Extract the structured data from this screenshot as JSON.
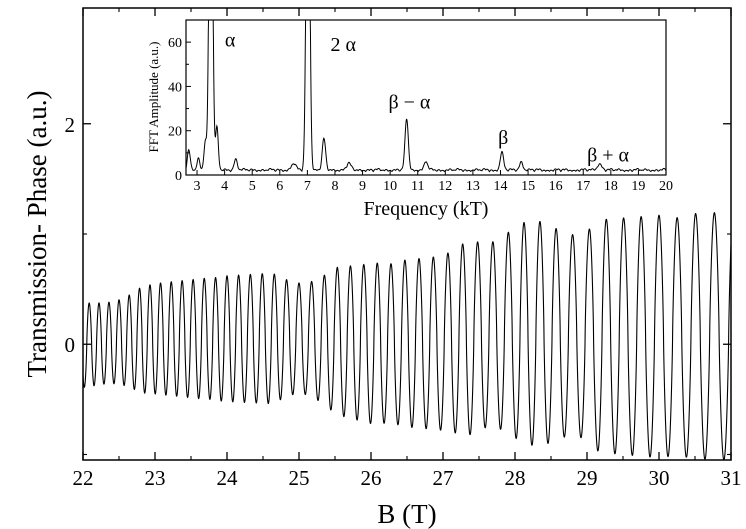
{
  "chart_data": [
    {
      "id": "main",
      "type": "line",
      "xlabel": "B (T)",
      "ylabel": "Transmission- Phase (a.u.)",
      "xlim": [
        22,
        31
      ],
      "ylim": [
        -1.05,
        3.05
      ],
      "x_ticks": [
        22,
        23,
        24,
        25,
        26,
        27,
        28,
        29,
        30,
        31
      ],
      "x_tick_labels": [
        "22",
        "23",
        "24",
        "25",
        "26",
        "27",
        "28",
        "29",
        "30",
        "31"
      ],
      "y_ticks": [
        0,
        2
      ],
      "y_tick_labels": [
        "0",
        "2"
      ],
      "grid": false,
      "series": [
        {
          "color": "#000000",
          "envelope": {
            "B": [
              22.0,
              23.0,
              24.0,
              25.0,
              26.0,
              27.0,
              27.5,
              28.0,
              29.0,
              30.0,
              31.0
            ],
            "max": [
              0.38,
              0.55,
              0.62,
              0.66,
              0.73,
              0.8,
              1.0,
              1.12,
              1.12,
              1.17,
              1.2
            ],
            "min": [
              -0.4,
              -0.45,
              -0.52,
              -0.55,
              -0.72,
              -0.78,
              -0.85,
              -0.9,
              -0.97,
              -1.03,
              -1.05
            ]
          },
          "oscillation_frequency_kT": 3.6
        }
      ]
    },
    {
      "id": "inset",
      "type": "line",
      "xlabel": "Frequency (kT)",
      "ylabel": "FFT Amplitude (a.u.)",
      "xlim": [
        2.6,
        20
      ],
      "ylim": [
        0,
        70
      ],
      "x_ticks": [
        3,
        4,
        5,
        6,
        7,
        8,
        9,
        10,
        11,
        12,
        13,
        14,
        15,
        16,
        17,
        18,
        19,
        20
      ],
      "x_tick_labels": [
        "3",
        "4",
        "5",
        "6",
        "7",
        "8",
        "9",
        "10",
        "11",
        "12",
        "13",
        "14",
        "15",
        "16",
        "17",
        "18",
        "19",
        "20"
      ],
      "y_ticks": [
        0,
        20,
        40,
        60
      ],
      "y_tick_labels": [
        "0",
        "20",
        "40",
        "60"
      ],
      "grid": false,
      "peaks": [
        {
          "x": 2.7,
          "y": 9,
          "w": 0.05
        },
        {
          "x": 3.05,
          "y": 5,
          "w": 0.05
        },
        {
          "x": 3.3,
          "y": 13,
          "w": 0.05
        },
        {
          "x": 3.5,
          "y": 200,
          "w": 0.06
        },
        {
          "x": 3.72,
          "y": 19,
          "w": 0.05
        },
        {
          "x": 4.4,
          "y": 5,
          "w": 0.06
        },
        {
          "x": 6.5,
          "y": 3,
          "w": 0.08
        },
        {
          "x": 7.02,
          "y": 200,
          "w": 0.06
        },
        {
          "x": 7.6,
          "y": 14,
          "w": 0.06
        },
        {
          "x": 8.5,
          "y": 3,
          "w": 0.08
        },
        {
          "x": 10.6,
          "y": 23,
          "w": 0.06
        },
        {
          "x": 11.3,
          "y": 4,
          "w": 0.06
        },
        {
          "x": 14.05,
          "y": 8,
          "w": 0.06
        },
        {
          "x": 14.75,
          "y": 4,
          "w": 0.06
        },
        {
          "x": 17.6,
          "y": 3,
          "w": 0.08
        }
      ],
      "baseline": 1.5,
      "annotations": [
        {
          "text": "α",
          "x": 4.2,
          "y": 58
        },
        {
          "text": "2 α",
          "x": 8.3,
          "y": 56
        },
        {
          "text": "β − α",
          "x": 10.7,
          "y": 30
        },
        {
          "text": "β",
          "x": 14.1,
          "y": 14
        },
        {
          "text": "β + α",
          "x": 17.9,
          "y": 6
        }
      ]
    }
  ]
}
